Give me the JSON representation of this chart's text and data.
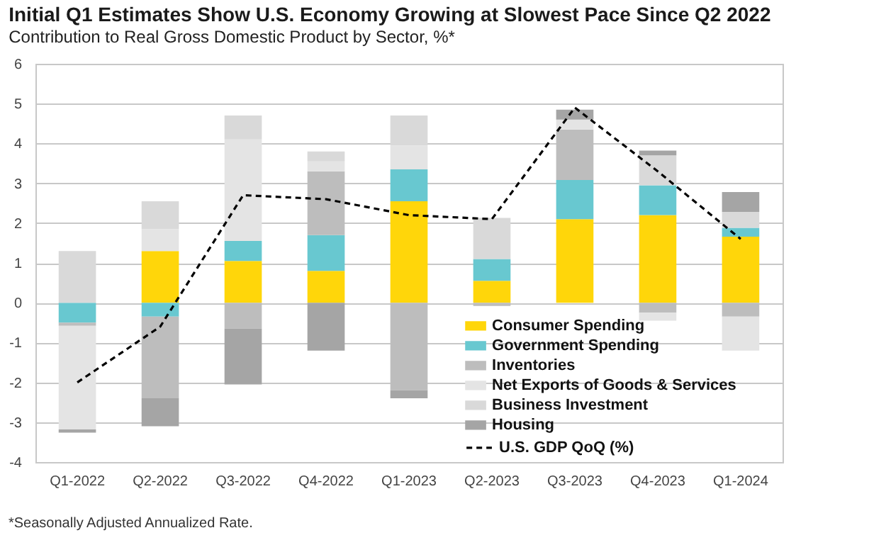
{
  "chart_data": {
    "type": "bar",
    "title": "Initial Q1 Estimates Show U.S. Economy Growing at Slowest Pace Since Q2 2022",
    "subtitle": "Contribution to Real Gross Domestic Product by Sector, %*",
    "categories": [
      "Q1-2022",
      "Q2-2022",
      "Q3-2022",
      "Q4-2022",
      "Q1-2023",
      "Q2-2023",
      "Q3-2023",
      "Q4-2023",
      "Q1-2024"
    ],
    "stacked": true,
    "ylim": [
      -4,
      6
    ],
    "yticks": [
      -4,
      -3,
      -2,
      -1,
      0,
      1,
      2,
      3,
      4,
      5,
      6
    ],
    "grid": "y",
    "legend": "bottom",
    "annotations": [
      "*Seasonally Adjusted Annualized Rate."
    ],
    "series": [
      {
        "name": "Consumer Spending",
        "color": "#ffd60a",
        "values": [
          0,
          1.3,
          1.05,
          0.8,
          2.55,
          0.55,
          2.1,
          2.2,
          1.66
        ]
      },
      {
        "name": "Government Spending",
        "color": "#68c8d0",
        "values": [
          -0.5,
          -0.35,
          0.5,
          0.9,
          0.8,
          0.55,
          0.98,
          0.75,
          0.22
        ]
      },
      {
        "name": "Inventories",
        "color": "#bdbdbd",
        "values": [
          -0.08,
          -2.05,
          -0.65,
          1.6,
          -2.2,
          -0.08,
          1.27,
          -0.25,
          -0.35
        ]
      },
      {
        "name": "Net Exports of Goods & Services",
        "color": "#e4e4e4",
        "values": [
          -2.6,
          0.55,
          2.55,
          0.25,
          0.6,
          0,
          0.25,
          -0.2,
          -0.85
        ]
      },
      {
        "name": "Business Investment",
        "color": "#d9d9d9",
        "values": [
          1.3,
          0.7,
          0.6,
          0.25,
          0.75,
          1.03,
          0,
          0.75,
          0.4
        ]
      },
      {
        "name": "Housing",
        "color": "#a5a5a5",
        "values": [
          -0.08,
          -0.7,
          -1.4,
          -1.2,
          -0.2,
          0,
          0.25,
          0.12,
          0.5
        ]
      },
      {
        "name": "U.S. GDP QoQ (%)",
        "type": "line",
        "color": "#000000",
        "line_style": "dashed",
        "marker": "none",
        "values": [
          -2.0,
          -0.6,
          2.7,
          2.6,
          2.2,
          2.1,
          4.9,
          3.3,
          1.6
        ]
      }
    ]
  }
}
